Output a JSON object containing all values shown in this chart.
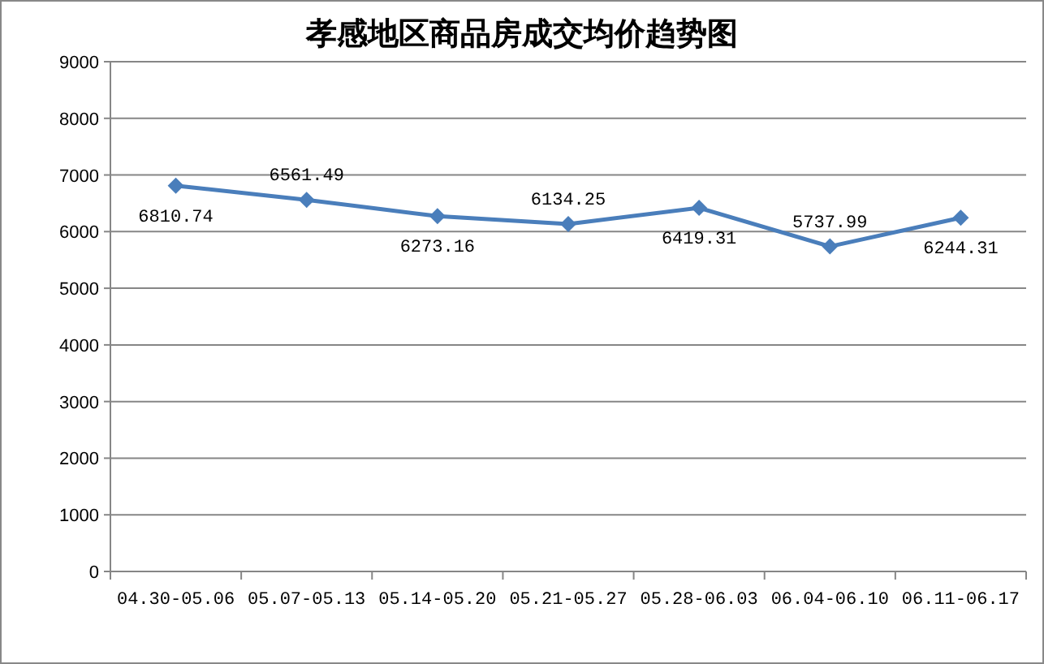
{
  "chart_data": {
    "type": "line",
    "title": "孝感地区商品房成交均价趋势图",
    "categories": [
      "04.30-05.06",
      "05.07-05.13",
      "05.14-05.20",
      "05.21-05.27",
      "05.28-06.03",
      "06.04-06.10",
      "06.11-06.17"
    ],
    "values": [
      6810.74,
      6561.49,
      6273.16,
      6134.25,
      6419.31,
      5737.99,
      6244.31
    ],
    "color": "#4a7ebb",
    "ylim": [
      0,
      9000
    ],
    "yticks": [
      0,
      1000,
      2000,
      3000,
      4000,
      5000,
      6000,
      7000,
      8000,
      9000
    ],
    "grid": "y",
    "marker": "diamond",
    "data_labels": true
  }
}
